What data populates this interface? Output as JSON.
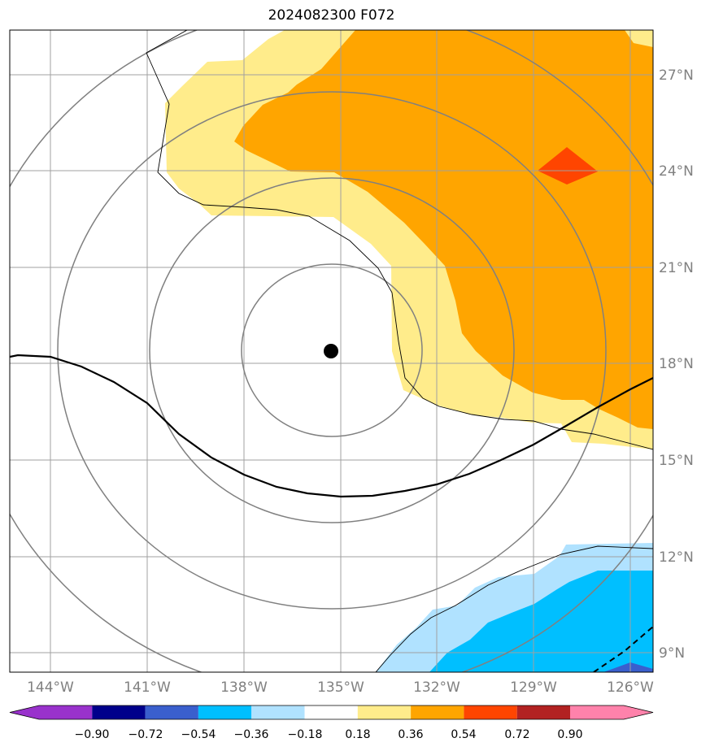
{
  "title": "2024082300 F072",
  "map": {
    "lon_range": [
      -145,
      -125
    ],
    "lat_range": [
      8.3,
      28.3
    ],
    "lon_ticks": [
      "144°W",
      "141°W",
      "138°W",
      "135°W",
      "132°W",
      "129°W",
      "126°W"
    ],
    "lat_ticks": [
      "9°N",
      "12°N",
      "15°N",
      "18°N",
      "21°N",
      "24°N",
      "27°N"
    ],
    "storm_center": {
      "lon": -135.3,
      "lat": 18.4
    },
    "range_rings_count": 4
  },
  "colorbar": {
    "levels": [
      "−0.90",
      "−0.72",
      "−0.54",
      "−0.36",
      "−0.18",
      "0.18",
      "0.36",
      "0.54",
      "0.72",
      "0.90"
    ],
    "colors": [
      "#9932cc",
      "#00008b",
      "#3a5fcd",
      "#00bfff",
      "#b0e2ff",
      "#ffffff",
      "#ffec8b",
      "#ffa500",
      "#ff4500",
      "#b22222",
      "#ff82ab"
    ],
    "extend": "both"
  }
}
